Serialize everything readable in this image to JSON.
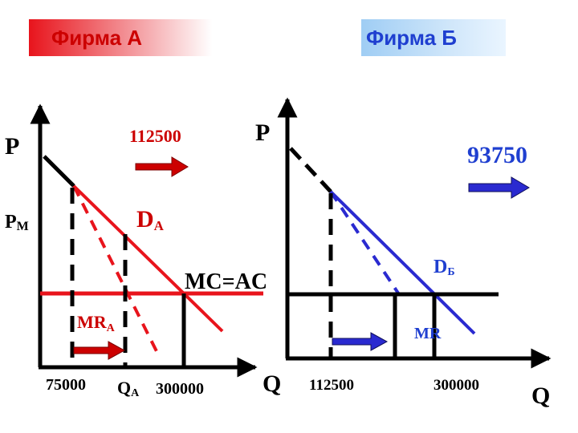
{
  "firm_a": {
    "title": "Фирма А",
    "profit": "112500",
    "price_label": "P",
    "price_sub": "М",
    "demand_label": "D",
    "demand_sub": "А",
    "mr_label": "MR",
    "mr_sub": "А",
    "cost_label": "MC=AC",
    "q1": "75000",
    "qa_label": "Q",
    "qa_sub": "А",
    "q3": "300000",
    "y_axis": "P",
    "x_axis": "Q"
  },
  "firm_b": {
    "title": "Фирма Б",
    "profit": "93750",
    "demand_label": "D",
    "demand_sub": "Б",
    "mr_label": "MR",
    "q1": "112500",
    "q2": "300000",
    "y_axis": "P",
    "x_axis": "Q"
  },
  "colors": {
    "firm_a_accent": "#cc0000",
    "firm_a_line": "#e8141c",
    "firm_b_accent": "#1f3fd0",
    "axis": "#000000"
  }
}
